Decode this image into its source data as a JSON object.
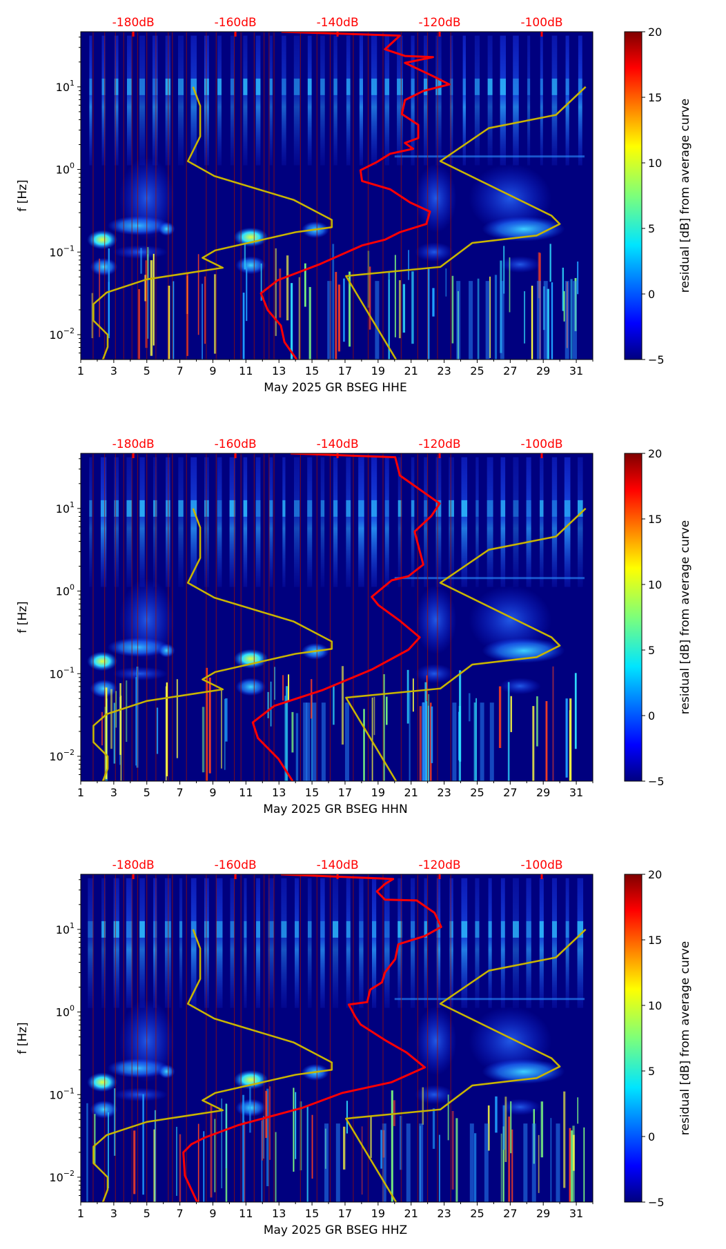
{
  "chart_data": [
    {
      "type": "heatmap",
      "title": "",
      "xlabel": "May 2025 GR BSEG  HHE",
      "ylabel": "f [Hz]",
      "x_ticks": [
        "1",
        "3",
        "5",
        "7",
        "9",
        "11",
        "13",
        "15",
        "17",
        "19",
        "21",
        "23",
        "25",
        "27",
        "29",
        "31"
      ],
      "xlim": [
        1,
        32
      ],
      "ylim_hz": [
        0.005,
        46
      ],
      "y_ticks": [
        {
          "base": "10",
          "exp": "1",
          "log": 1
        },
        {
          "base": "10",
          "exp": "0",
          "log": 0
        },
        {
          "base": "10",
          "exp": "−1",
          "log": -1
        },
        {
          "base": "10",
          "exp": "−2",
          "log": -2
        }
      ],
      "top_axis": {
        "ticks": [
          "-180dB",
          "-160dB",
          "-140dB",
          "-120dB",
          "-100dB"
        ],
        "values": [
          -180,
          -160,
          -140,
          -120,
          -100
        ],
        "range_db": [
          -190.3,
          -90
        ]
      },
      "colorbar": {
        "label": "residual [dB] from average curve",
        "range": [
          -5,
          20
        ],
        "ticks": [
          "−5",
          "0",
          "5",
          "10",
          "15",
          "20"
        ]
      },
      "series": [
        {
          "name": "average PSD curve",
          "color": "#ff0000",
          "units": "dB",
          "points": [
            [
              -151.0,
              1.667
            ],
            [
              -127.8,
              1.62
            ],
            [
              -130.7,
              1.455
            ],
            [
              -126.8,
              1.374
            ],
            [
              -121.3,
              1.36
            ],
            [
              -126.8,
              1.29
            ],
            [
              -121.3,
              1.13
            ],
            [
              -118.1,
              1.03
            ],
            [
              -123.2,
              0.95
            ],
            [
              -126.8,
              0.84
            ],
            [
              -127.4,
              0.67
            ],
            [
              -124.2,
              0.54
            ],
            [
              -124.2,
              0.38
            ],
            [
              -126.8,
              0.32
            ],
            [
              -125.2,
              0.25
            ],
            [
              -129.7,
              0.19
            ],
            [
              -132.3,
              0.09
            ],
            [
              -135.5,
              -0.01
            ],
            [
              -135.2,
              -0.14
            ],
            [
              -129.7,
              -0.24
            ],
            [
              -125.8,
              -0.4
            ],
            [
              -121.9,
              -0.51
            ],
            [
              -122.6,
              -0.66
            ],
            [
              -127.8,
              -0.76
            ],
            [
              -130.7,
              -0.85
            ],
            [
              -135.2,
              -0.92
            ],
            [
              -143.6,
              -1.15
            ],
            [
              -151.7,
              -1.34
            ],
            [
              -155.0,
              -1.5
            ],
            [
              -153.7,
              -1.7
            ],
            [
              -151.1,
              -1.89
            ],
            [
              -150.4,
              -2.09
            ],
            [
              -148.0,
              -2.3
            ]
          ]
        },
        {
          "name": "noise model",
          "color": "#c8b400",
          "units": "day",
          "points": [
            [
              7.8,
              1.0
            ],
            [
              8.23,
              0.77
            ],
            [
              8.23,
              0.4
            ],
            [
              7.49,
              0.1
            ],
            [
              9.09,
              -0.08
            ],
            [
              13.9,
              -0.37
            ],
            [
              16.2,
              -0.61
            ],
            [
              16.2,
              -0.7
            ],
            [
              14.0,
              -0.76
            ],
            [
              9.14,
              -0.98
            ],
            [
              8.37,
              -1.07
            ],
            [
              9.6,
              -1.19
            ],
            [
              5.0,
              -1.33
            ],
            [
              2.57,
              -1.49
            ],
            [
              1.77,
              -1.63
            ],
            [
              1.77,
              -1.83
            ],
            [
              2.63,
              -2.0
            ],
            [
              2.63,
              -2.15
            ],
            [
              2.34,
              -2.3
            ]
          ]
        },
        {
          "name": "noise model right",
          "color": "#c8b400",
          "units": "day",
          "points": [
            [
              31.57,
              1.0
            ],
            [
              29.77,
              0.66
            ],
            [
              25.7,
              0.5
            ],
            [
              22.77,
              0.1
            ],
            [
              29.5,
              -0.56
            ],
            [
              30.0,
              -0.66
            ],
            [
              28.6,
              -0.8
            ],
            [
              24.7,
              -0.89
            ],
            [
              22.77,
              -1.18
            ],
            [
              17.06,
              -1.29
            ],
            [
              20.09,
              -2.3
            ]
          ]
        }
      ]
    },
    {
      "type": "heatmap",
      "title": "",
      "xlabel": "May 2025 GR BSEG  HHN",
      "ylabel": "f [Hz]",
      "x_ticks": [
        "1",
        "3",
        "5",
        "7",
        "9",
        "11",
        "13",
        "15",
        "17",
        "19",
        "21",
        "23",
        "25",
        "27",
        "29",
        "31"
      ],
      "xlim": [
        1,
        32
      ],
      "ylim_hz": [
        0.005,
        46
      ],
      "y_ticks": [
        {
          "base": "10",
          "exp": "1",
          "log": 1
        },
        {
          "base": "10",
          "exp": "0",
          "log": 0
        },
        {
          "base": "10",
          "exp": "−1",
          "log": -1
        },
        {
          "base": "10",
          "exp": "−2",
          "log": -2
        }
      ],
      "top_axis": {
        "ticks": [
          "-180dB",
          "-160dB",
          "-140dB",
          "-120dB",
          "-100dB"
        ],
        "values": [
          -180,
          -160,
          -140,
          -120,
          -100
        ],
        "range_db": [
          -190.3,
          -90
        ]
      },
      "colorbar": {
        "label": "residual [dB] from average curve",
        "range": [
          -5,
          20
        ],
        "ticks": [
          "−5",
          "0",
          "5",
          "10",
          "15",
          "20"
        ]
      },
      "series": [
        {
          "name": "average PSD curve",
          "color": "#ff0000",
          "units": "dB",
          "points": [
            [
              -149.2,
              1.667
            ],
            [
              -128.7,
              1.62
            ],
            [
              -127.8,
              1.4
            ],
            [
              -120.0,
              1.06
            ],
            [
              -121.6,
              0.91
            ],
            [
              -124.9,
              0.72
            ],
            [
              -123.2,
              0.32
            ],
            [
              -126.1,
              0.18
            ],
            [
              -129.4,
              0.13
            ],
            [
              -133.3,
              -0.07
            ],
            [
              -132.0,
              -0.17
            ],
            [
              -127.8,
              -0.36
            ],
            [
              -123.9,
              -0.56
            ],
            [
              -126.1,
              -0.71
            ],
            [
              -133.3,
              -0.95
            ],
            [
              -143.0,
              -1.2
            ],
            [
              -152.4,
              -1.39
            ],
            [
              -156.6,
              -1.59
            ],
            [
              -155.6,
              -1.78
            ],
            [
              -151.6,
              -2.03
            ],
            [
              -148.8,
              -2.3
            ]
          ]
        },
        {
          "name": "noise model",
          "color": "#c8b400",
          "units": "day",
          "points": [
            [
              7.8,
              1.0
            ],
            [
              8.23,
              0.77
            ],
            [
              8.23,
              0.4
            ],
            [
              7.49,
              0.1
            ],
            [
              9.09,
              -0.08
            ],
            [
              13.9,
              -0.37
            ],
            [
              16.2,
              -0.61
            ],
            [
              16.2,
              -0.7
            ],
            [
              14.0,
              -0.76
            ],
            [
              9.14,
              -0.98
            ],
            [
              8.37,
              -1.07
            ],
            [
              9.6,
              -1.19
            ],
            [
              5.0,
              -1.33
            ],
            [
              2.57,
              -1.49
            ],
            [
              1.77,
              -1.63
            ],
            [
              1.77,
              -1.83
            ],
            [
              2.63,
              -2.0
            ],
            [
              2.63,
              -2.15
            ],
            [
              2.34,
              -2.3
            ]
          ]
        },
        {
          "name": "noise model right",
          "color": "#c8b400",
          "units": "day",
          "points": [
            [
              31.57,
              1.0
            ],
            [
              29.77,
              0.66
            ],
            [
              25.7,
              0.5
            ],
            [
              22.77,
              0.1
            ],
            [
              29.5,
              -0.56
            ],
            [
              30.0,
              -0.66
            ],
            [
              28.6,
              -0.8
            ],
            [
              24.7,
              -0.89
            ],
            [
              22.77,
              -1.18
            ],
            [
              17.06,
              -1.29
            ],
            [
              20.09,
              -2.3
            ]
          ]
        }
      ]
    },
    {
      "type": "heatmap",
      "title": "",
      "xlabel": "May 2025 GR BSEG  HHZ",
      "ylabel": "f [Hz]",
      "x_ticks": [
        "1",
        "3",
        "5",
        "7",
        "9",
        "11",
        "13",
        "15",
        "17",
        "19",
        "21",
        "23",
        "25",
        "27",
        "29",
        "31"
      ],
      "xlim": [
        1,
        32
      ],
      "ylim_hz": [
        0.005,
        46
      ],
      "y_ticks": [
        {
          "base": "10",
          "exp": "1",
          "log": 1
        },
        {
          "base": "10",
          "exp": "0",
          "log": 0
        },
        {
          "base": "10",
          "exp": "−1",
          "log": -1
        },
        {
          "base": "10",
          "exp": "−2",
          "log": -2
        }
      ],
      "top_axis": {
        "ticks": [
          "-180dB",
          "-160dB",
          "-140dB",
          "-120dB",
          "-100dB"
        ],
        "values": [
          -180,
          -160,
          -140,
          -120,
          -100
        ],
        "range_db": [
          -190.3,
          -90
        ]
      },
      "colorbar": {
        "label": "residual [dB] from average curve",
        "range": [
          -5,
          20
        ],
        "ticks": [
          "−5",
          "0",
          "5",
          "10",
          "15",
          "20"
        ]
      },
      "series": [
        {
          "name": "average PSD curve",
          "color": "#ff0000",
          "units": "dB",
          "points": [
            [
              -151.1,
              1.667
            ],
            [
              -129.1,
              1.61
            ],
            [
              -130.7,
              1.55
            ],
            [
              -132.3,
              1.46
            ],
            [
              -130.7,
              1.36
            ],
            [
              -124.5,
              1.35
            ],
            [
              -121.0,
              1.2
            ],
            [
              -119.7,
              1.03
            ],
            [
              -122.9,
              0.92
            ],
            [
              -128.1,
              0.82
            ],
            [
              -128.7,
              0.64
            ],
            [
              -130.7,
              0.48
            ],
            [
              -131.3,
              0.36
            ],
            [
              -133.6,
              0.27
            ],
            [
              -134.2,
              0.12
            ],
            [
              -137.8,
              0.09
            ],
            [
              -136.5,
              -0.06
            ],
            [
              -135.5,
              -0.15
            ],
            [
              -130.7,
              -0.34
            ],
            [
              -126.5,
              -0.49
            ],
            [
              -122.9,
              -0.67
            ],
            [
              -129.4,
              -0.85
            ],
            [
              -139.1,
              -0.98
            ],
            [
              -146.9,
              -1.16
            ],
            [
              -159.5,
              -1.37
            ],
            [
              -166.0,
              -1.52
            ],
            [
              -168.6,
              -1.6
            ],
            [
              -170.2,
              -1.7
            ],
            [
              -169.9,
              -1.98
            ],
            [
              -167.5,
              -2.3
            ]
          ]
        },
        {
          "name": "noise model",
          "color": "#c8b400",
          "units": "day",
          "points": [
            [
              7.8,
              1.0
            ],
            [
              8.23,
              0.77
            ],
            [
              8.23,
              0.4
            ],
            [
              7.49,
              0.1
            ],
            [
              9.09,
              -0.08
            ],
            [
              13.9,
              -0.37
            ],
            [
              16.2,
              -0.61
            ],
            [
              16.2,
              -0.7
            ],
            [
              14.0,
              -0.76
            ],
            [
              9.14,
              -0.98
            ],
            [
              8.37,
              -1.07
            ],
            [
              9.6,
              -1.19
            ],
            [
              5.0,
              -1.33
            ],
            [
              2.57,
              -1.49
            ],
            [
              1.77,
              -1.63
            ],
            [
              1.77,
              -1.83
            ],
            [
              2.63,
              -2.0
            ],
            [
              2.63,
              -2.15
            ],
            [
              2.34,
              -2.3
            ]
          ]
        },
        {
          "name": "noise model right",
          "color": "#c8b400",
          "units": "day",
          "points": [
            [
              31.57,
              1.0
            ],
            [
              29.77,
              0.66
            ],
            [
              25.7,
              0.5
            ],
            [
              22.77,
              0.1
            ],
            [
              29.5,
              -0.56
            ],
            [
              30.0,
              -0.66
            ],
            [
              28.6,
              -0.8
            ],
            [
              24.7,
              -0.89
            ],
            [
              22.77,
              -1.18
            ],
            [
              17.06,
              -1.29
            ],
            [
              20.09,
              -2.3
            ]
          ]
        }
      ]
    }
  ]
}
